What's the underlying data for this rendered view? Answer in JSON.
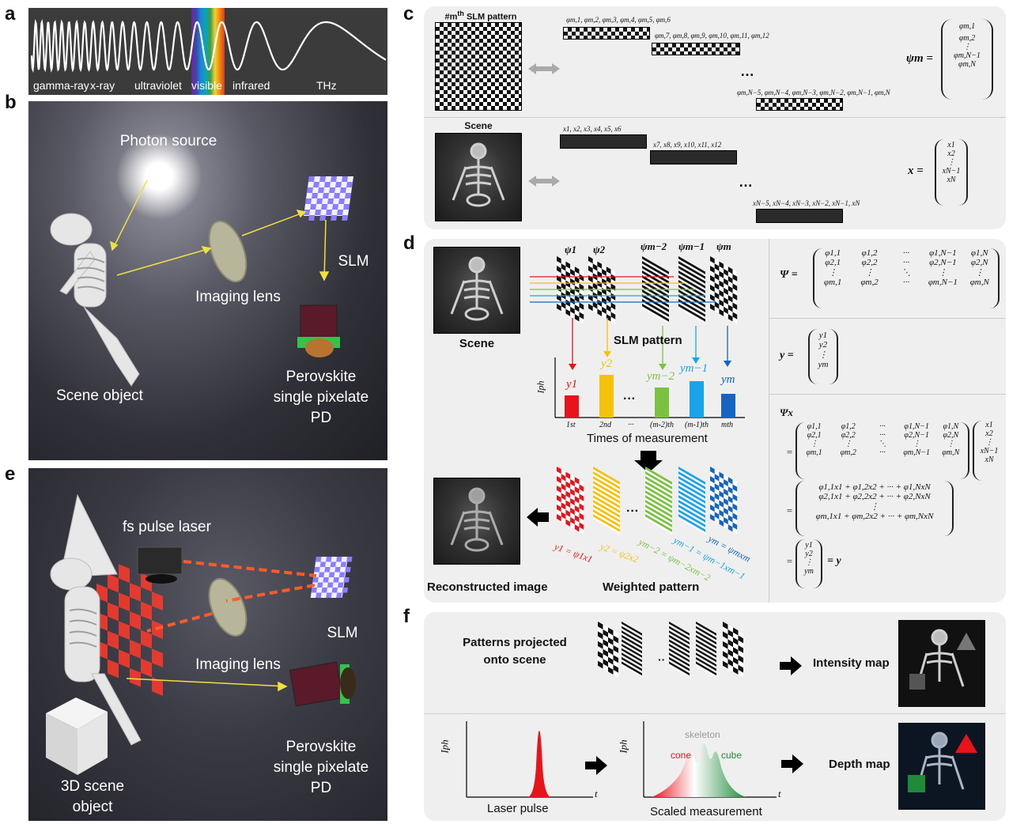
{
  "panel_labels": {
    "a": "a",
    "b": "b",
    "c": "c",
    "d": "d",
    "e": "e",
    "f": "f"
  },
  "spectrum": {
    "labels": [
      "gamma-ray",
      "x-ray",
      "ultraviolet",
      "visible",
      "infrared",
      "THz"
    ]
  },
  "panel_b": {
    "photon_source": "Photon source",
    "slm": "SLM",
    "imaging_lens": "Imaging lens",
    "scene_object": "Scene object",
    "detector": [
      "Perovskite",
      "single pixelate",
      "PD"
    ]
  },
  "panel_e": {
    "laser": "fs pulse laser",
    "slm": "SLM",
    "imaging_lens": "Imaging lens",
    "scene_object": [
      "3D scene",
      "object"
    ],
    "detector": [
      "Perovskite",
      "single pixelate",
      "PD"
    ]
  },
  "panel_c": {
    "pattern_title": "#mth SLM pattern",
    "pattern_title_base": "#m",
    "pattern_title_sup": "th",
    "pattern_title_rest": " SLM pattern",
    "scene_title": "Scene",
    "phi_row1": "φm,1, φm,2, φm,3, φm,4, φm,5, φm,6",
    "phi_row2": "φm,7, φm,8, φm,9, φm,10, φm,11, φm,12",
    "phi_row3": "φm,N−5, φm,N−4, φm,N−3, φm,N−2, φm,N−1, φm,N",
    "x_row1": "x1, x2, x3, x4, x5, x6",
    "x_row2": "x7, x8, x9, x10, x11, x12",
    "x_row3": "xN−5, xN−4, xN−3, xN−2, xN−1, xN",
    "ellipsis": "…",
    "psi_lhs": "ψm =",
    "psi_vec": [
      "φm,1",
      "φm,2",
      "⋮",
      "φm,N−1",
      "φm,N"
    ],
    "x_lhs": "x =",
    "x_vec": [
      "x1",
      "x2",
      "⋮",
      "xN−1",
      "xN"
    ]
  },
  "panel_d": {
    "scene": "Scene",
    "slm_pattern": "SLM pattern",
    "psi_labels": [
      "ψ1",
      "ψ2",
      "ψm−2",
      "ψm−1",
      "ψm"
    ],
    "y_labels": [
      "y1",
      "y2",
      "ym−2",
      "ym−1",
      "ym"
    ],
    "iph": "Iph",
    "bar_ticks": [
      "1st",
      "2nd",
      "···",
      "(m-2)th",
      "(m-1)th",
      "mth"
    ],
    "times_of_measurement": "Times of measurement",
    "ellipsis": "···",
    "reconstructed": "Reconstructed image",
    "weighted": "Weighted pattern",
    "weighted_eqs": [
      "y1 = ψ1x1",
      "y2 = ψ2x2",
      "ym−2 = ψm−2xm−2",
      "ym−1 = ψm−1xm−1",
      "ym = ψmxm"
    ],
    "Psi_lhs": "Ψ =",
    "Psi_rows": [
      [
        "φ1,1",
        "φ1,2",
        "···",
        "φ1,N−1",
        "φ1,N"
      ],
      [
        "φ2,1",
        "φ2,2",
        "···",
        "φ2,N−1",
        "φ2,N"
      ],
      [
        "⋮",
        "⋮",
        "⋱",
        "⋮",
        "⋮"
      ],
      [
        "φm,1",
        "φm,2",
        "···",
        "φm,N−1",
        "φm,N"
      ]
    ],
    "y_lhs": "y =",
    "y_vec": [
      "y1",
      "y2",
      "⋮",
      "ym"
    ],
    "Psi_x": "Ψx",
    "eq": "=",
    "x_col": [
      "x1",
      "x2",
      "⋮",
      "xN−1",
      "xN"
    ],
    "sum_rows": [
      "φ1,1x1 + φ1,2x2 + ··· + φ1,NxN",
      "φ2,1x1 + φ2,2x2 + ··· + φ2,NxN",
      "⋮",
      "φm,1x1 + φm,2x2 + ··· + φm,NxN"
    ],
    "final_y": "= y"
  },
  "panel_f": {
    "patterns_text": [
      "Patterns projected",
      "onto scene"
    ],
    "dots": "··",
    "intensity_map": "Intensity map",
    "depth_map": "Depth map",
    "iph": "Iph",
    "t": "t",
    "laser_pulse": "Laser pulse",
    "scaled_measurement": "Scaled measurement",
    "skeleton": "skeleton",
    "cone": "cone",
    "cube": "cube"
  },
  "colors": {
    "red": "#e8141c",
    "yellow": "#f4c20d",
    "green": "#7cc242",
    "cyan": "#1aa3e8",
    "blue": "#1565c0",
    "panel_bg": "#efefef",
    "dark_scene": "#2c2c36"
  }
}
